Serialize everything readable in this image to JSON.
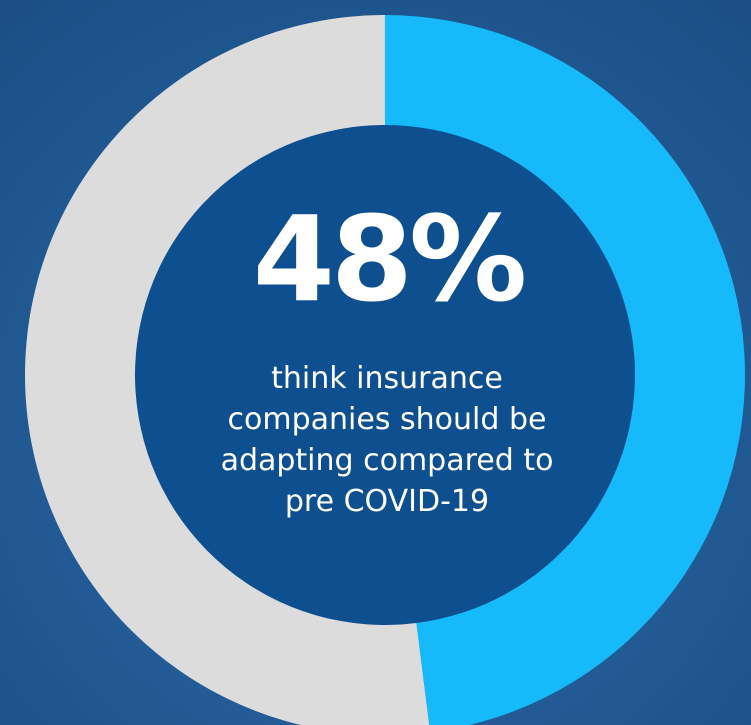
{
  "chart_data": {
    "type": "donut",
    "values": [
      48,
      52
    ],
    "value_labels": [
      "48%",
      null
    ],
    "colors": [
      "#16b9f9",
      "#dcdcdc"
    ],
    "caption": [
      "think insurance",
      "companies should be",
      "adapting compared to",
      "pre COVID-19"
    ]
  }
}
